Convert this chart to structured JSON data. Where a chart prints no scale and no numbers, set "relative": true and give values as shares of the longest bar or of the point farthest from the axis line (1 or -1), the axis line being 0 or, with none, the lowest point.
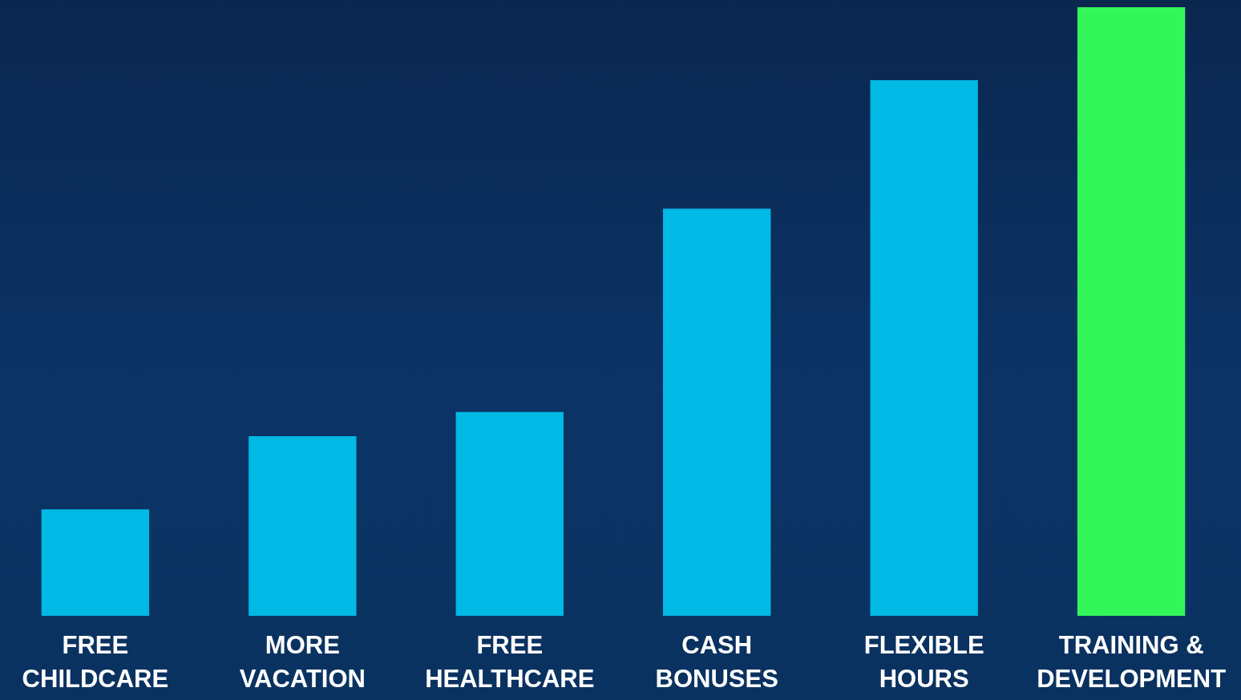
{
  "chart_data": {
    "type": "bar",
    "relative": true,
    "categories": [
      "FREE CHILDCARE",
      "MORE VACATION",
      "FREE HEALTHCARE",
      "CASH BONUSES",
      "FLEXIBLE HOURS",
      "TRAINING & DEVELOPMENT"
    ],
    "values": [
      0.175,
      0.295,
      0.335,
      0.669,
      0.88,
      1
    ],
    "colors": [
      "#00b9e4",
      "#00b9e4",
      "#00b9e4",
      "#00b9e4",
      "#00b9e4",
      "#33f75a"
    ]
  }
}
